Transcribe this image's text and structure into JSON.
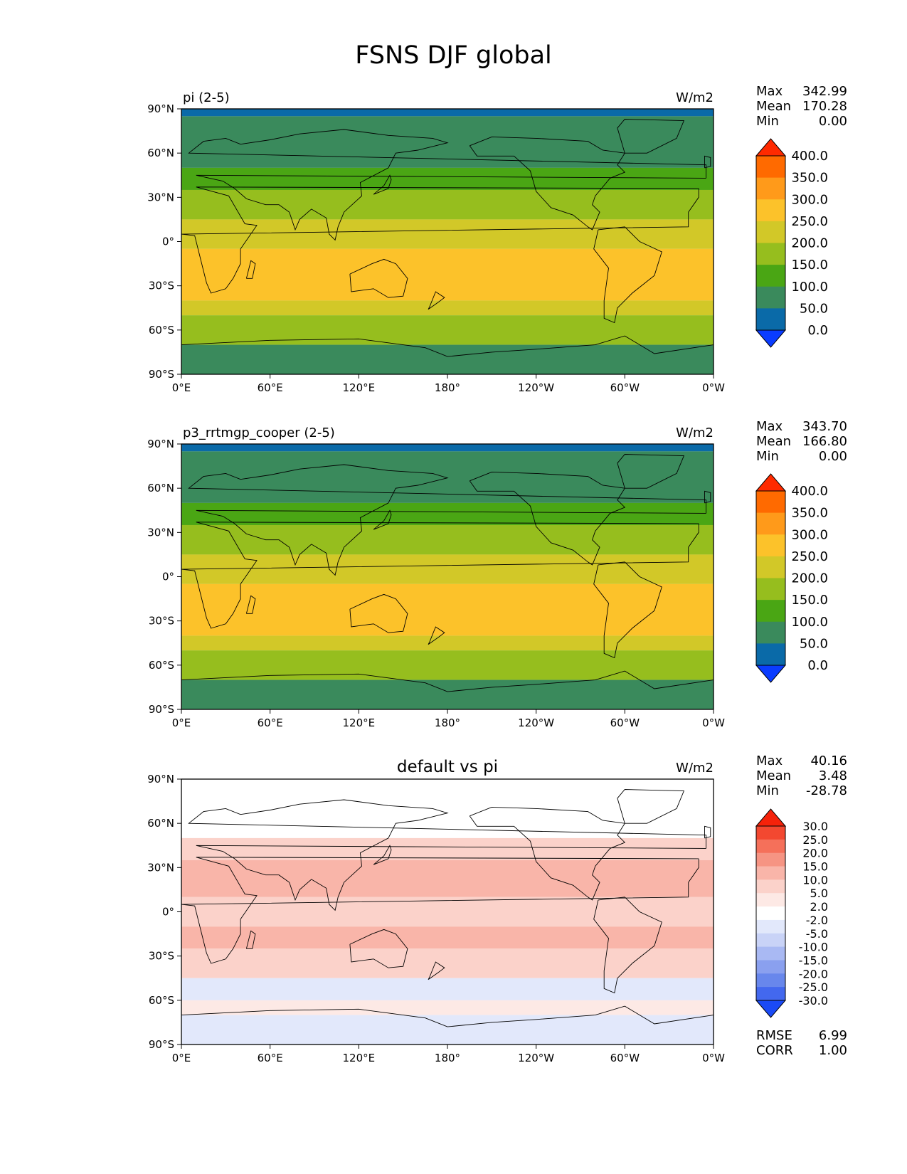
{
  "title": "FSNS DJF global",
  "chart_data": [
    {
      "type": "heatmap",
      "title": "pi (2-5)",
      "units": "W/m2",
      "stats": {
        "max": "342.99",
        "mean": "170.28",
        "min": "0.00"
      },
      "x_ticks": [
        "0°E",
        "60°E",
        "120°E",
        "180°",
        "120°W",
        "60°W",
        "0°W"
      ],
      "y_ticks": [
        "90°N",
        "60°N",
        "30°N",
        "0°",
        "30°S",
        "60°S",
        "90°S"
      ],
      "xlim": [
        0,
        360
      ],
      "ylim": [
        -90,
        90
      ],
      "zonal_mean_bands": [
        {
          "lat": [
            85,
            90
          ],
          "value": 0
        },
        {
          "lat": [
            50,
            85
          ],
          "value": 60
        },
        {
          "lat": [
            35,
            50
          ],
          "value": 110
        },
        {
          "lat": [
            15,
            35
          ],
          "value": 170
        },
        {
          "lat": [
            -5,
            15
          ],
          "value": 210
        },
        {
          "lat": [
            -40,
            -5
          ],
          "value": 260
        },
        {
          "lat": [
            -50,
            -40
          ],
          "value": 210
        },
        {
          "lat": [
            -70,
            -50
          ],
          "value": 160
        },
        {
          "lat": [
            -90,
            -70
          ],
          "value": 80
        }
      ],
      "colorbar": {
        "levels": [
          "400.0",
          "350.0",
          "300.0",
          "250.0",
          "200.0",
          "150.0",
          "100.0",
          "50.0",
          "0.0"
        ],
        "colors": [
          "#ff2a00",
          "#ff6a00",
          "#ff9a1a",
          "#fcc22a",
          "#d2c828",
          "#96be1e",
          "#4aa614",
          "#3a8a5c",
          "#0a6aa8",
          "#0a3cff"
        ]
      }
    },
    {
      "type": "heatmap",
      "title": "p3_rrtmgp_cooper (2-5)",
      "units": "W/m2",
      "stats": {
        "max": "343.70",
        "mean": "166.80",
        "min": "0.00"
      },
      "x_ticks": [
        "0°E",
        "60°E",
        "120°E",
        "180°",
        "120°W",
        "60°W",
        "0°W"
      ],
      "y_ticks": [
        "90°N",
        "60°N",
        "30°N",
        "0°",
        "30°S",
        "60°S",
        "90°S"
      ],
      "xlim": [
        0,
        360
      ],
      "ylim": [
        -90,
        90
      ],
      "zonal_mean_bands": [
        {
          "lat": [
            85,
            90
          ],
          "value": 0
        },
        {
          "lat": [
            50,
            85
          ],
          "value": 60
        },
        {
          "lat": [
            35,
            50
          ],
          "value": 110
        },
        {
          "lat": [
            15,
            35
          ],
          "value": 165
        },
        {
          "lat": [
            -5,
            15
          ],
          "value": 205
        },
        {
          "lat": [
            -40,
            -5
          ],
          "value": 255
        },
        {
          "lat": [
            -50,
            -40
          ],
          "value": 205
        },
        {
          "lat": [
            -70,
            -50
          ],
          "value": 155
        },
        {
          "lat": [
            -90,
            -70
          ],
          "value": 80
        }
      ],
      "colorbar": {
        "levels": [
          "400.0",
          "350.0",
          "300.0",
          "250.0",
          "200.0",
          "150.0",
          "100.0",
          "50.0",
          "0.0"
        ],
        "colors": [
          "#ff2a00",
          "#ff6a00",
          "#ff9a1a",
          "#fcc22a",
          "#d2c828",
          "#96be1e",
          "#4aa614",
          "#3a8a5c",
          "#0a6aa8",
          "#0a3cff"
        ]
      }
    },
    {
      "type": "heatmap",
      "title": "default vs pi",
      "units": "W/m2",
      "stats": {
        "max": "40.16",
        "mean": "3.48",
        "min": "-28.78"
      },
      "rmse": "6.99",
      "corr": "1.00",
      "x_ticks": [
        "0°E",
        "60°E",
        "120°E",
        "180°",
        "120°W",
        "60°W",
        "0°W"
      ],
      "y_ticks": [
        "90°N",
        "60°N",
        "30°N",
        "0°",
        "30°S",
        "60°S",
        "90°S"
      ],
      "xlim": [
        0,
        360
      ],
      "ylim": [
        -90,
        90
      ],
      "zonal_mean_bands": [
        {
          "lat": [
            50,
            90
          ],
          "value": 0
        },
        {
          "lat": [
            35,
            50
          ],
          "value": 6
        },
        {
          "lat": [
            10,
            35
          ],
          "value": 10
        },
        {
          "lat": [
            -10,
            10
          ],
          "value": 6
        },
        {
          "lat": [
            -25,
            -10
          ],
          "value": 12
        },
        {
          "lat": [
            -45,
            -25
          ],
          "value": 5
        },
        {
          "lat": [
            -60,
            -45
          ],
          "value": -4
        },
        {
          "lat": [
            -70,
            -60
          ],
          "value": 3
        },
        {
          "lat": [
            -90,
            -70
          ],
          "value": -3
        }
      ],
      "colorbar": {
        "levels": [
          "30.0",
          "25.0",
          "20.0",
          "15.0",
          "10.0",
          "5.0",
          "2.0",
          "-2.0",
          "-5.0",
          "-10.0",
          "-15.0",
          "-20.0",
          "-25.0",
          "-30.0"
        ],
        "colors": [
          "#f5220a",
          "#f34830",
          "#f5705a",
          "#f69483",
          "#f9b5a9",
          "#fbd2ca",
          "#fde9e5",
          "#ffffff",
          "#e2e8fb",
          "#c9d3f7",
          "#a9b9f3",
          "#8aa0ef",
          "#6887ec",
          "#4368ee",
          "#1a4af5"
        ]
      }
    }
  ]
}
